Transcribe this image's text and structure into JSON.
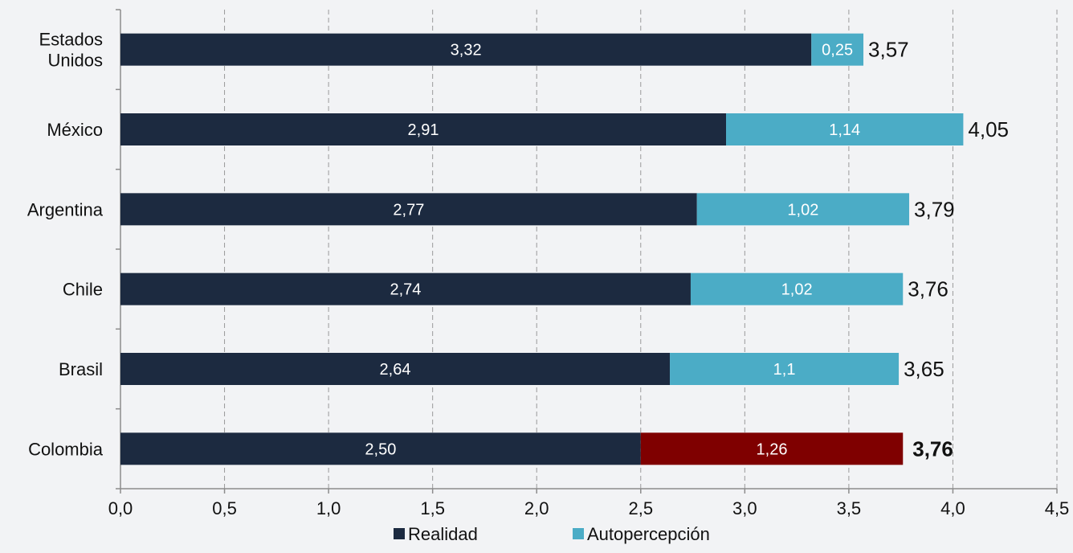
{
  "chart_data": {
    "type": "bar",
    "orientation": "horizontal",
    "stacked": true,
    "categories": [
      "Estados Unidos",
      "México",
      "Argentina",
      "Chile",
      "Brasil",
      "Colombia"
    ],
    "category_lines": [
      [
        "Estados",
        "Unidos"
      ],
      [
        "México"
      ],
      [
        "Argentina"
      ],
      [
        "Chile"
      ],
      [
        "Brasil"
      ],
      [
        "Colombia"
      ]
    ],
    "series": [
      {
        "name": "Realidad",
        "color": "#1c2a40",
        "values": [
          3.32,
          2.91,
          2.77,
          2.74,
          2.64,
          2.5
        ],
        "labels": [
          "3,32",
          "2,91",
          "2,77",
          "2,74",
          "2,64",
          "2,50"
        ]
      },
      {
        "name": "Autopercepción",
        "color": "#4bacc6",
        "values": [
          0.25,
          1.14,
          1.02,
          1.02,
          1.1,
          1.26
        ],
        "labels": [
          "0,25",
          "1,14",
          "1,02",
          "1,02",
          "1,1",
          "1,26"
        ],
        "highlight": {
          "category_index": 5,
          "color": "#7f0000"
        }
      }
    ],
    "totals": [
      "3,57",
      "4,05",
      "3,79",
      "3,76",
      "3,65",
      "3,76"
    ],
    "totals_bold_index": 5,
    "xlim": [
      0,
      4.5
    ],
    "x_ticks": [
      0,
      0.5,
      1,
      1.5,
      2,
      2.5,
      3,
      3.5,
      4,
      4.5
    ],
    "x_tick_labels": [
      "0,0",
      "0,5",
      "1,0",
      "1,5",
      "2,0",
      "2,5",
      "3,0",
      "3,5",
      "4,0",
      "4,5"
    ],
    "grid": "vertical dashed",
    "legend": {
      "position": "bottom",
      "items": [
        "Realidad",
        "Autopercepción"
      ]
    },
    "title": "",
    "xlabel": "",
    "ylabel": ""
  }
}
